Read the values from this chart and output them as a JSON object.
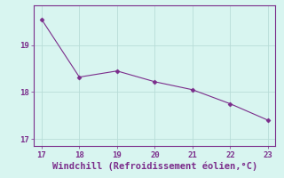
{
  "x": [
    17,
    18,
    19,
    20,
    21,
    22,
    23
  ],
  "y": [
    19.55,
    18.32,
    18.45,
    18.22,
    18.05,
    17.75,
    17.4
  ],
  "line_color": "#7b2d8b",
  "marker": "D",
  "marker_size": 2.5,
  "xlabel": "Windchill (Refroidissement éolien,°C)",
  "xlabel_color": "#7b2d8b",
  "background_color": "#d8f5f0",
  "grid_color": "#b8ddd8",
  "tick_color": "#7b2d8b",
  "spine_color": "#7b2d8b",
  "xlim": [
    16.8,
    23.2
  ],
  "ylim": [
    16.85,
    19.85
  ],
  "xticks": [
    17,
    18,
    19,
    20,
    21,
    22,
    23
  ],
  "yticks": [
    17,
    18,
    19
  ],
  "xlabel_fontsize": 7.5,
  "tick_fontsize": 6.5
}
